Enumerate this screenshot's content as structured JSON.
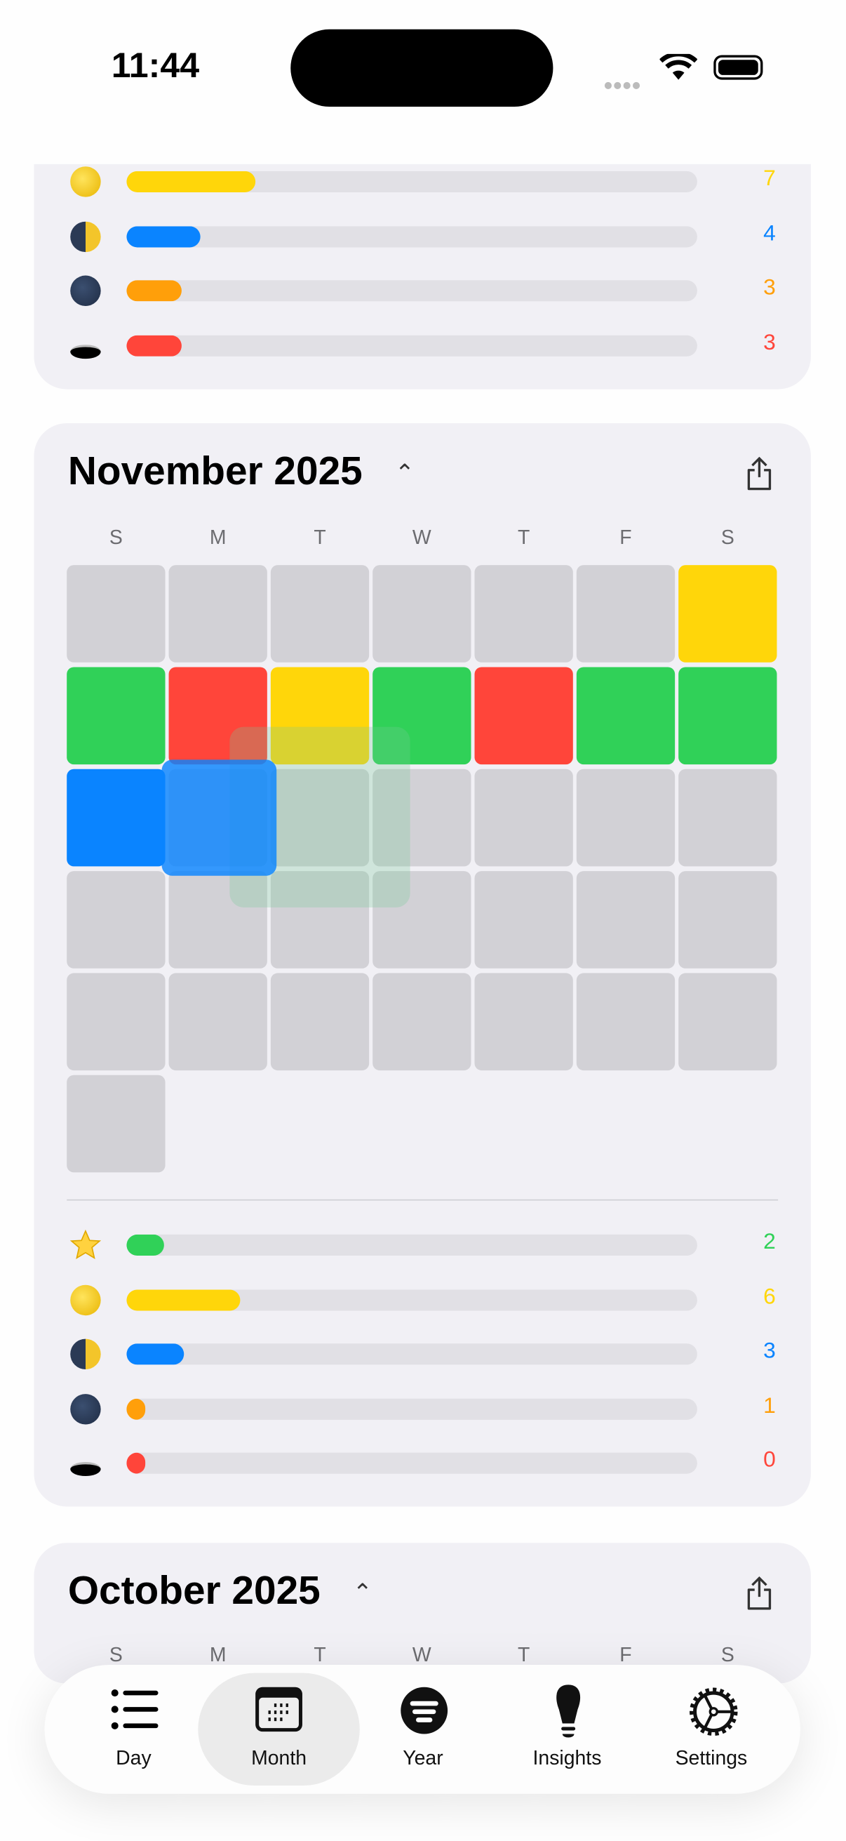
{
  "status_bar": {
    "time": "11:44"
  },
  "top_card": {
    "stats": [
      {
        "icon": "full-moon-icon",
        "value": 7,
        "color": "#ffd60a"
      },
      {
        "icon": "half-moon-icon",
        "value": 4,
        "color": "#0a84ff"
      },
      {
        "icon": "new-moon-icon",
        "value": 3,
        "color": "#ff9f0a"
      },
      {
        "icon": "eclipse-icon",
        "value": 3,
        "color": "#ff453a"
      }
    ]
  },
  "november": {
    "title": "November 2025",
    "weekdays": [
      "S",
      "M",
      "T",
      "W",
      "T",
      "F",
      "S"
    ],
    "days": [
      "empty",
      "empty",
      "empty",
      "empty",
      "empty",
      "empty",
      "yellow",
      "green",
      "red",
      "yellow",
      "green",
      "red",
      "green",
      "green",
      "blue",
      "empty",
      "empty",
      "empty",
      "empty",
      "empty",
      "empty",
      "empty",
      "empty",
      "empty",
      "empty",
      "empty",
      "empty",
      "empty",
      "empty",
      "empty",
      "empty",
      "empty",
      "empty",
      "empty",
      "empty",
      "empty"
    ],
    "stats": [
      {
        "icon": "star-icon",
        "value": 2,
        "color": "#30d158"
      },
      {
        "icon": "full-moon-icon",
        "value": 6,
        "color": "#ffd60a"
      },
      {
        "icon": "half-moon-icon",
        "value": 3,
        "color": "#0a84ff"
      },
      {
        "icon": "new-moon-icon",
        "value": 1,
        "color": "#ff9f0a"
      },
      {
        "icon": "eclipse-icon",
        "value": 0,
        "color": "#ff453a"
      }
    ]
  },
  "october": {
    "title": "October 2025",
    "weekdays": [
      "S",
      "M",
      "T",
      "W",
      "T",
      "F",
      "S"
    ]
  },
  "colors": {
    "green": "#30d158",
    "red": "#ff453a",
    "yellow": "#ffd60a",
    "blue": "#0a84ff",
    "empty": "#d2d1d6"
  },
  "tabs": [
    {
      "label": "Day",
      "icon": "list-icon"
    },
    {
      "label": "Month",
      "icon": "calendar-icon",
      "active": true
    },
    {
      "label": "Year",
      "icon": "year-icon"
    },
    {
      "label": "Insights",
      "icon": "lightbulb-icon"
    },
    {
      "label": "Settings",
      "icon": "gear-icon"
    }
  ]
}
